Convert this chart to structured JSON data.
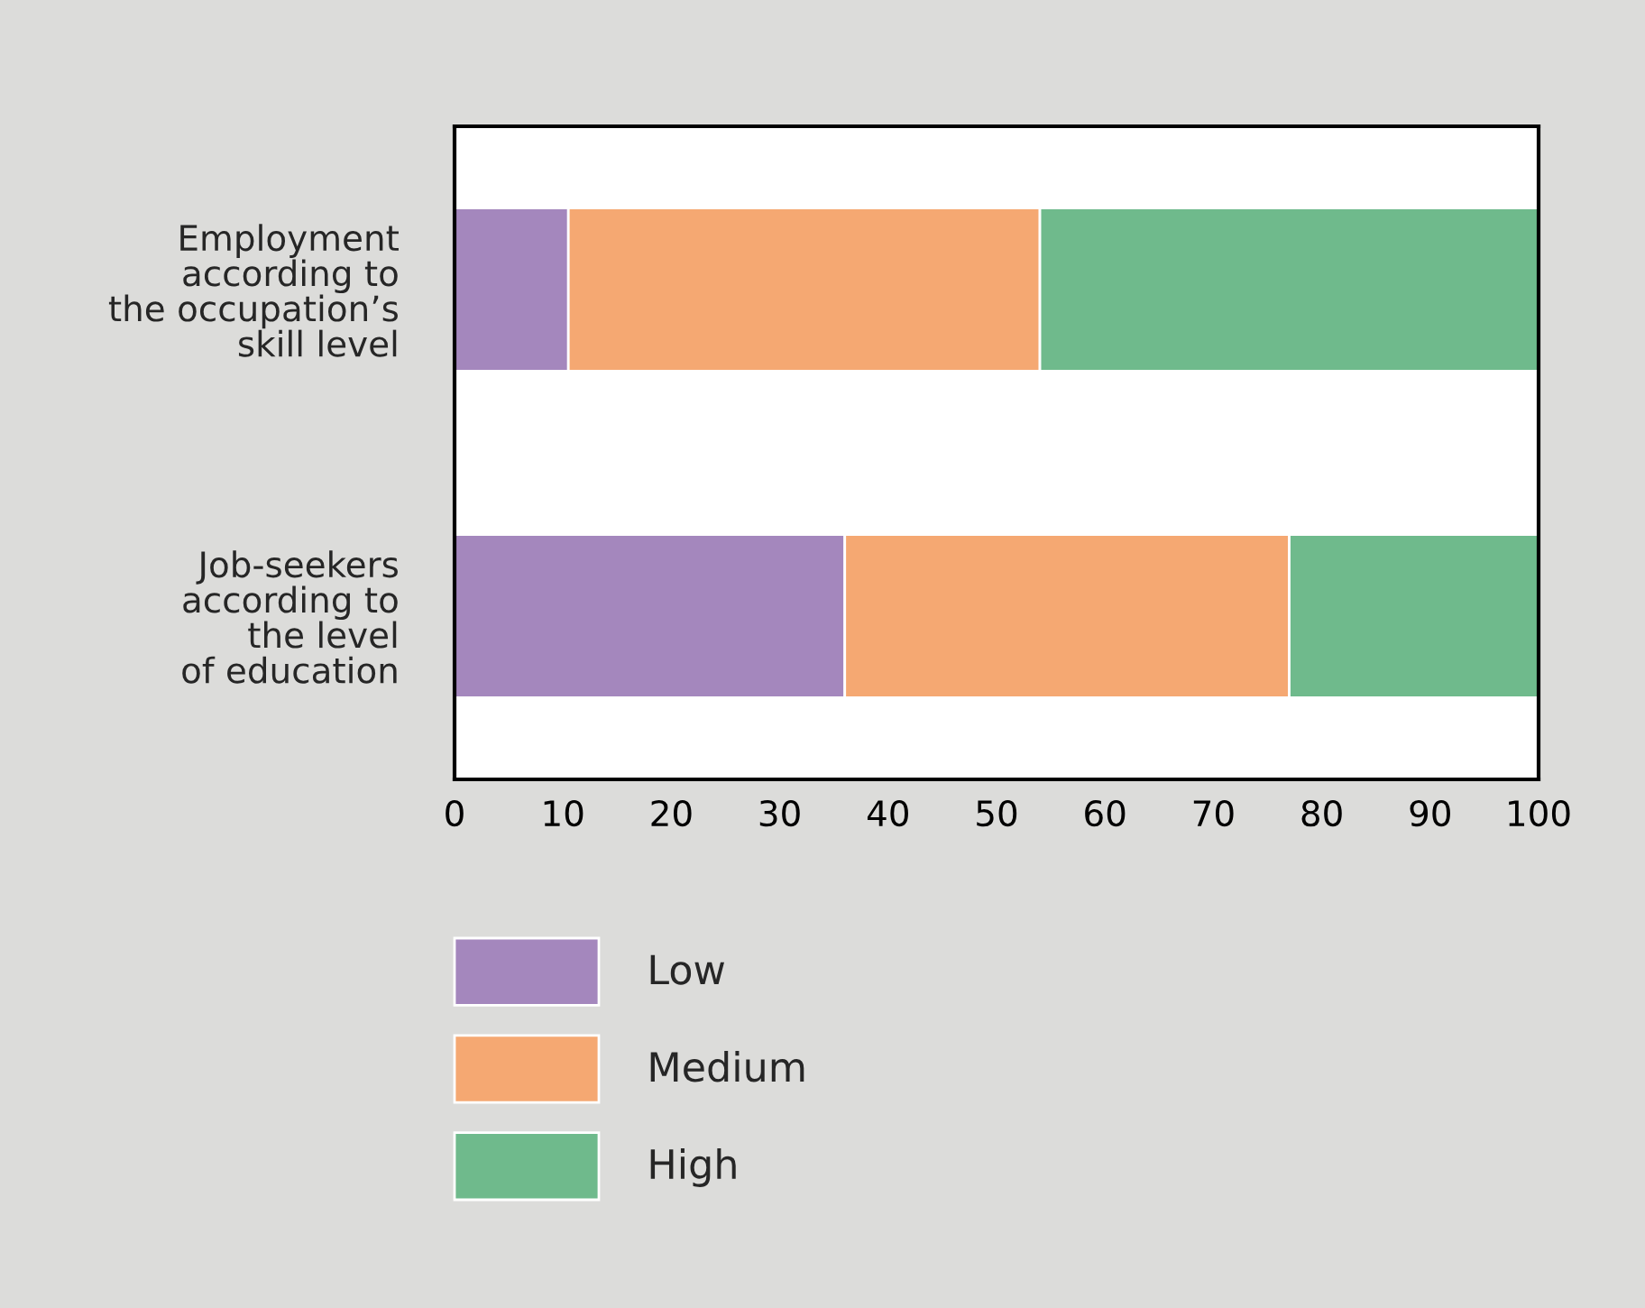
{
  "chart_data": {
    "type": "bar",
    "orientation": "horizontal",
    "stacked": true,
    "categories": [
      "Employment\naccording to\nthe occupation’s\nskill level",
      "Job-seekers\naccording to\nthe level\nof education"
    ],
    "series": [
      {
        "name": "Low",
        "color": "#a487bd",
        "values": [
          10.5,
          36
        ]
      },
      {
        "name": "Medium",
        "color": "#f5a872",
        "values": [
          43.5,
          41
        ]
      },
      {
        "name": "High",
        "color": "#6fba8c",
        "values": [
          46,
          23
        ]
      }
    ],
    "xlim": [
      0,
      100
    ],
    "xticks": [
      0,
      10,
      20,
      30,
      40,
      50,
      60,
      70,
      80,
      90,
      100
    ],
    "grid": false,
    "legend": "bottom"
  }
}
